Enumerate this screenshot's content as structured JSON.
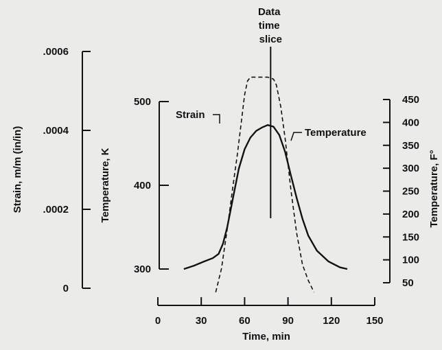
{
  "chart_data": {
    "type": "line",
    "xlabel": "Time, min",
    "x_ticks": [
      "0",
      "30",
      "60",
      "90",
      "120",
      "150"
    ],
    "xlim": [
      0,
      150
    ],
    "strain_axis": {
      "label": "Strain, m/m (in/in)",
      "ticks": [
        "0",
        ".0002",
        ".0004",
        ".0006"
      ],
      "range": [
        0,
        0.0006
      ]
    },
    "kelvin_axis": {
      "label": "Temperature, K",
      "ticks": [
        "300",
        "400",
        "500"
      ],
      "range": [
        300,
        500
      ]
    },
    "fahrenheit_axis": {
      "label": "Temperature, F°",
      "ticks": [
        "50",
        "100",
        "150",
        "200",
        "250",
        "300",
        "350",
        "400",
        "450"
      ],
      "range": [
        50,
        450
      ]
    },
    "annotations": {
      "time_slice": "Data time slice",
      "time_slice_lines": [
        "Data",
        "time",
        "slice"
      ],
      "time_slice_x": 78,
      "strain_curve": "Strain",
      "temperature_curve": "Temperature"
    },
    "series": [
      {
        "name": "Strain",
        "axis": "strain",
        "style": "dashed",
        "x": [
          40,
          44,
          48,
          52,
          55,
          58,
          60,
          62,
          64,
          70,
          76,
          80,
          82,
          85,
          88,
          92,
          96,
          100,
          104,
          108
        ],
        "y": [
          -1e-05,
          5e-05,
          0.00015,
          0.00026,
          0.00034,
          0.00043,
          0.00049,
          0.000525,
          0.000535,
          0.000535,
          0.000535,
          0.00053,
          0.000515,
          0.00046,
          0.00038,
          0.00025,
          0.00014,
          6e-05,
          2e-05,
          -1e-05
        ]
      },
      {
        "name": "Temperature",
        "axis": "kelvin",
        "style": "solid",
        "x": [
          18,
          25,
          32,
          38,
          42,
          45,
          48,
          52,
          56,
          60,
          64,
          68,
          72,
          76,
          80,
          84,
          88,
          92,
          96,
          100,
          104,
          110,
          118,
          126,
          131
        ],
        "y": [
          300,
          304,
          309,
          313,
          318,
          330,
          350,
          385,
          420,
          443,
          457,
          465,
          469,
          472,
          470,
          460,
          440,
          412,
          385,
          360,
          340,
          322,
          309,
          302,
          300
        ]
      }
    ]
  }
}
